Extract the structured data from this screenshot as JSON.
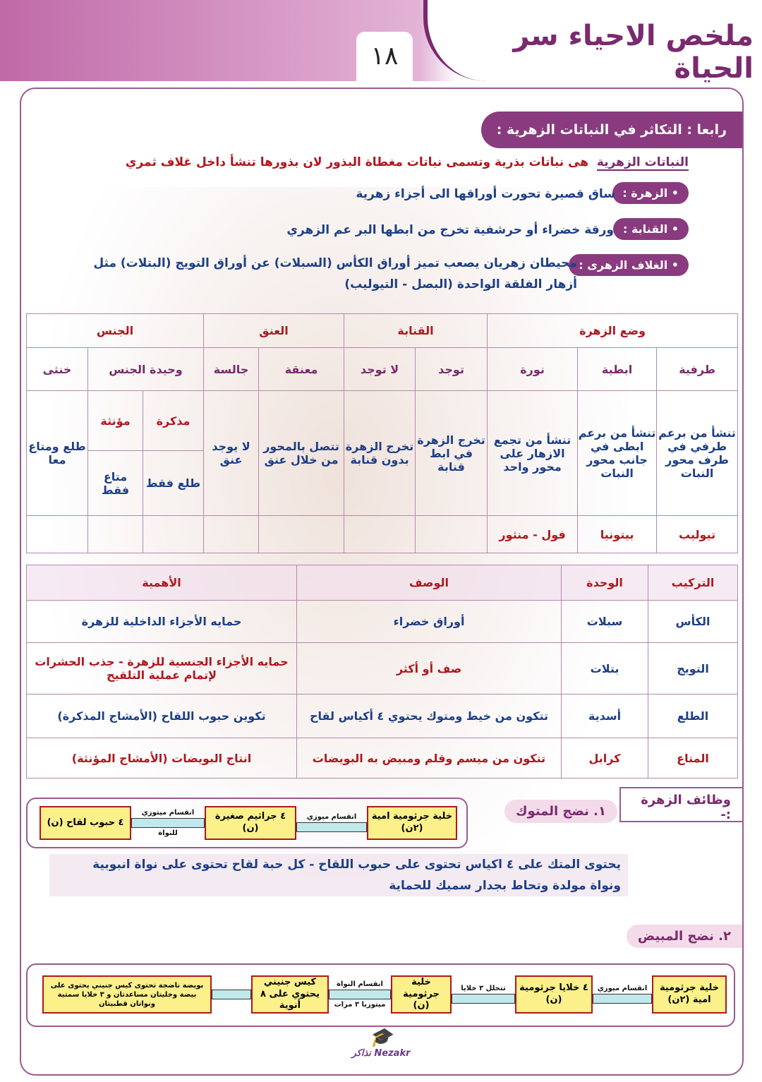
{
  "header": {
    "title": "ملخص الاحياء سر الحياة",
    "page_number": "١٨"
  },
  "section": {
    "heading": "رابعا : التكاثر في النباتات الزهرية :",
    "definition_term": "النباتات الزهرية",
    "definition_text": "هى نباتات بذرية وتسمى نباتات مغطاة البذور لان بذورها تنشأ داخل غلاف ثمري",
    "items": [
      {
        "term": "• الزهرة :",
        "text": "ساق قصيرة تحورت أوراقها الى أجزاء زهرية"
      },
      {
        "term": "• القنابة :",
        "text": "ورقة خضراء أو حرشفية تخرج من ابطها البر عم الزهري"
      },
      {
        "term": "• الغلاف الزهرى :",
        "text": "محيطان زهريان يصعب تميز أوراق الكأس (السبلات) عن أوراق التويج (البتلات) مثل",
        "text2": "أزهار الفلقة الواحدة (البصل - التيوليب)"
      }
    ]
  },
  "table1": {
    "groups": [
      "وضع الزهرة",
      "القنابة",
      "العنق",
      "الجنس"
    ],
    "sub": [
      "طرفية",
      "ابطية",
      "نورة",
      "توجد",
      "لا توجد",
      "معنقة",
      "جالسة",
      "وحيدة الجنس",
      "خنثى"
    ],
    "desc": [
      "تنشأ من برعم طرفي في طرف محور النبات",
      "تنشأ من برعم ابطى في جانب محور النبات",
      "تنشأ من تجمع الازهار على محور واحد",
      "تخرج الزهرة في ابط قنابة",
      "تخرج الزهرة بدون قنابة",
      "تتصل بالمحور من خلال عنق",
      "لا يوجد عنق",
      "طلع ومتاع معا"
    ],
    "sex_sub": [
      "مذكرة",
      "مؤنثة"
    ],
    "sex_desc": [
      "طلع فقط",
      "متاع فقط"
    ],
    "examples": [
      "تيوليب",
      "بيتونيا",
      "فول - منثور"
    ]
  },
  "table2": {
    "headers": [
      "التركيب",
      "الوحدة",
      "الوصف",
      "الأهمية"
    ],
    "rows": [
      [
        "الكأس",
        "سبلات",
        "أوراق خضراء",
        "حمايه الأجزاء الداخلية للزهرة"
      ],
      [
        "التويج",
        "بتلات",
        "صف أو أكثر",
        "حمايه الأجزاء الجنسية للزهرة - جذب الحشرات لإتمام عملية التلقيح"
      ],
      [
        "الطلع",
        "أسدية",
        "تتكون من خيط ومتوك يحتوي ٤ أكياس لقاح",
        "تكوين حبوب اللقاح (الأمشاج المذكرة)"
      ],
      [
        "المتاع",
        "كرابل",
        "تتكون من ميسم وقلم ومبيض به البويضات",
        "انتاج البويضات (الأمشاج المؤنثة)"
      ]
    ]
  },
  "functions": {
    "title": "وظائف الزهرة :-",
    "anther_title": "١. نضج المتوك",
    "ovary_title": "٢. نضج المبيض",
    "anther_flow": {
      "boxes": [
        "خلية جرثومية امية (٢ن)",
        "٤ جراثيم صغيرة (ن)",
        "٤ حبوب لقاح (ن)"
      ],
      "arrows": [
        {
          "top": "انقسام ميوزي",
          "bottom": ""
        },
        {
          "top": "انقسام ميتوزي",
          "bottom": "للنواة"
        }
      ]
    },
    "anther_text": [
      "يحتوى المتك على ٤ اكياس تحتوى على حبوب اللقاح - كل حبة لقاح تحتوى على نواة انبوبية",
      "ونواة مولدة وتحاط بجدار سميك للحماية"
    ],
    "ovary_flow": {
      "boxes": [
        "خلية جرثومية امية (٢ن)",
        "٤ خلايا جرثومية (ن)",
        "خلية جرثومية (ن)",
        "كيس جنيني يحتوي على ٨ أنوية",
        "بويضة ناضجة تحتوى كيس جنيني يحتوى على بيضة وخليتان مساعدتان و ٣ خلايا سمتية ونواتان قطبيتان"
      ],
      "arrows": [
        {
          "top": "انقسام ميوزي",
          "bottom": ""
        },
        {
          "top": "تتحلل ٣ خلايا",
          "bottom": ""
        },
        {
          "top": "انقسام النواة",
          "bottom": "ميتوزيا ٣ مرات"
        },
        {
          "top": "",
          "bottom": ""
        }
      ]
    }
  },
  "logo": "Nezakr نذاكر"
}
